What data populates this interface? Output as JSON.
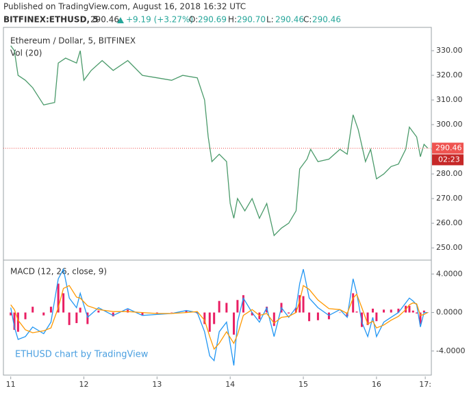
{
  "header": {
    "published": "Published on TradingView.com, August 16, 2018 16:32 UTC",
    "symbol": "BITFINEX:ETHUSD, 5",
    "price": "290.46",
    "change": "+9.19 (+3.27%)",
    "ohlc": [
      {
        "label": "O:",
        "value": "290.69"
      },
      {
        "label": "H:",
        "value": "290.70"
      },
      {
        "label": "L:",
        "value": "290.46"
      },
      {
        "label": "C:",
        "value": "290.46"
      }
    ]
  },
  "chart_data": [
    {
      "type": "line",
      "title": "Ethereum / Dollar, 5, BITFINEX",
      "subtitle": "Vol (20)",
      "x": [
        11.0,
        11.05,
        11.1,
        11.2,
        11.3,
        11.45,
        11.6,
        11.65,
        11.75,
        11.9,
        11.95,
        12.0,
        12.1,
        12.25,
        12.4,
        12.6,
        12.8,
        13.0,
        13.2,
        13.35,
        13.55,
        13.65,
        13.7,
        13.75,
        13.85,
        13.95,
        14.0,
        14.05,
        14.1,
        14.2,
        14.3,
        14.4,
        14.5,
        14.6,
        14.7,
        14.8,
        14.9,
        14.95,
        15.05,
        15.1,
        15.2,
        15.35,
        15.5,
        15.6,
        15.68,
        15.75,
        15.85,
        15.92,
        16.0,
        16.1,
        16.2,
        16.3,
        16.4,
        16.45,
        16.55,
        16.6,
        16.65,
        16.7
      ],
      "series": [
        {
          "color": "#4a9a6a",
          "values": [
            332,
            330,
            320,
            318,
            315,
            308,
            309,
            325,
            327,
            325,
            330,
            318,
            322,
            326,
            322,
            326,
            320,
            319,
            318,
            320,
            319,
            310,
            295,
            285,
            288,
            285,
            268,
            262,
            270,
            265,
            270,
            262,
            268,
            255,
            258,
            260,
            265,
            282,
            286,
            290,
            285,
            286,
            290,
            288,
            304,
            298,
            285,
            290,
            278,
            280,
            283,
            284,
            290,
            299,
            295,
            287,
            292,
            290.46
          ]
        }
      ],
      "last_price": 290.46,
      "last_price_color": "#ef5350",
      "countdown": "02:23",
      "xlim": [
        10.9,
        16.75
      ],
      "ylim": [
        245.6,
        338.9
      ],
      "yticks": [
        {
          "value": 250,
          "label": "250.00"
        },
        {
          "value": 260,
          "label": "260.00"
        },
        {
          "value": 270,
          "label": "270.00"
        },
        {
          "value": 280,
          "label": "280.00"
        },
        {
          "value": 290,
          "label": "290.00"
        },
        {
          "value": 300,
          "label": "300.00"
        },
        {
          "value": 310,
          "label": "310.00"
        },
        {
          "value": 320,
          "label": "320.00"
        },
        {
          "value": 330,
          "label": "330.00"
        }
      ]
    },
    {
      "type": "line",
      "title": "MACD (12, 26, close, 9)",
      "watermark": "ETHUSD chart by TradingView",
      "x": [
        11.0,
        11.05,
        11.1,
        11.2,
        11.3,
        11.45,
        11.55,
        11.65,
        11.72,
        11.8,
        11.9,
        11.95,
        12.05,
        12.2,
        12.4,
        12.6,
        12.8,
        13.0,
        13.2,
        13.4,
        13.55,
        13.65,
        13.72,
        13.78,
        13.85,
        13.95,
        14.05,
        14.1,
        14.18,
        14.3,
        14.4,
        14.5,
        14.6,
        14.7,
        14.8,
        14.9,
        14.95,
        15.0,
        15.08,
        15.2,
        15.35,
        15.5,
        15.6,
        15.68,
        15.73,
        15.8,
        15.88,
        15.95,
        16.0,
        16.1,
        16.2,
        16.3,
        16.4,
        16.45,
        16.5,
        16.55,
        16.6,
        16.65,
        16.7
      ],
      "series": [
        {
          "color": "#2196f3",
          "values": [
            0.5,
            -1.5,
            -2.8,
            -2.5,
            -1.5,
            -2.2,
            -1,
            3.5,
            4.5,
            1.5,
            0.5,
            2,
            -0.5,
            0.5,
            -0.3,
            0.4,
            -0.3,
            -0.2,
            -0.1,
            0.2,
            0,
            -2,
            -4.5,
            -5,
            -2,
            -1,
            -5.5,
            -1,
            1.5,
            0,
            -1,
            0.5,
            -2.5,
            0.5,
            -0.5,
            0.5,
            3,
            4.5,
            1.5,
            0.5,
            -0.3,
            0.3,
            -0.5,
            3.5,
            2,
            -1,
            -2.5,
            -0.5,
            -2.5,
            -1,
            -0.5,
            0,
            1,
            1.5,
            1.2,
            0.8,
            -1.5,
            0,
            0
          ]
        },
        {
          "color": "#ff9800",
          "values": [
            0.8,
            0.3,
            -0.8,
            -1.8,
            -2.1,
            -1.9,
            -1.6,
            0.5,
            2.5,
            2.8,
            1.6,
            1.5,
            0.7,
            0.3,
            0.1,
            0.1,
            0.0,
            -0.1,
            -0.1,
            0.0,
            0.1,
            -0.8,
            -2.5,
            -3.8,
            -3.2,
            -2.0,
            -3.2,
            -2.3,
            -0.3,
            0.3,
            -0.3,
            -0.1,
            -1.1,
            -0.5,
            -0.4,
            0.0,
            1.2,
            2.8,
            2.4,
            1.3,
            0.4,
            0.3,
            -0.1,
            1.5,
            1.9,
            0.5,
            -1.2,
            -0.9,
            -1.6,
            -1.3,
            -0.8,
            -0.4,
            0.3,
            0.8,
            1.0,
            0.9,
            -0.3,
            -0.2,
            0
          ]
        }
      ],
      "histogram": {
        "color": "#e91e63",
        "values": [
          -0.3,
          -1.8,
          -2.0,
          -0.7,
          0.6,
          -0.3,
          0.6,
          3.0,
          2.0,
          -1.3,
          -1.1,
          0.5,
          -1.2,
          0.2,
          -0.4,
          0.3,
          -0.3,
          -0.1,
          0,
          0.2,
          -0.1,
          -1.2,
          -2.0,
          -1.2,
          1.2,
          1.0,
          -2.3,
          1.3,
          1.8,
          -0.3,
          -0.7,
          0.6,
          -1.4,
          1.0,
          -0.1,
          0.5,
          1.8,
          1.7,
          -0.9,
          -0.8,
          -0.7,
          0,
          -0.4,
          2.0,
          0.1,
          -1.5,
          -1.3,
          0.4,
          -0.9,
          0.3,
          0.3,
          0.4,
          0.7,
          0.7,
          0.2,
          -0.1,
          -1.2,
          0.2,
          0
        ]
      },
      "xlim": [
        10.9,
        16.75
      ],
      "ylim": [
        -6.5,
        5.3
      ],
      "yticks": [
        {
          "value": 4,
          "label": "4.0000"
        },
        {
          "value": 0,
          "label": "0.0000"
        },
        {
          "value": -4,
          "label": "-4.0000"
        }
      ],
      "xticks": [
        11,
        12,
        13,
        14,
        15,
        16,
        {
          "value": 16.667,
          "label": "17:"
        }
      ]
    }
  ]
}
